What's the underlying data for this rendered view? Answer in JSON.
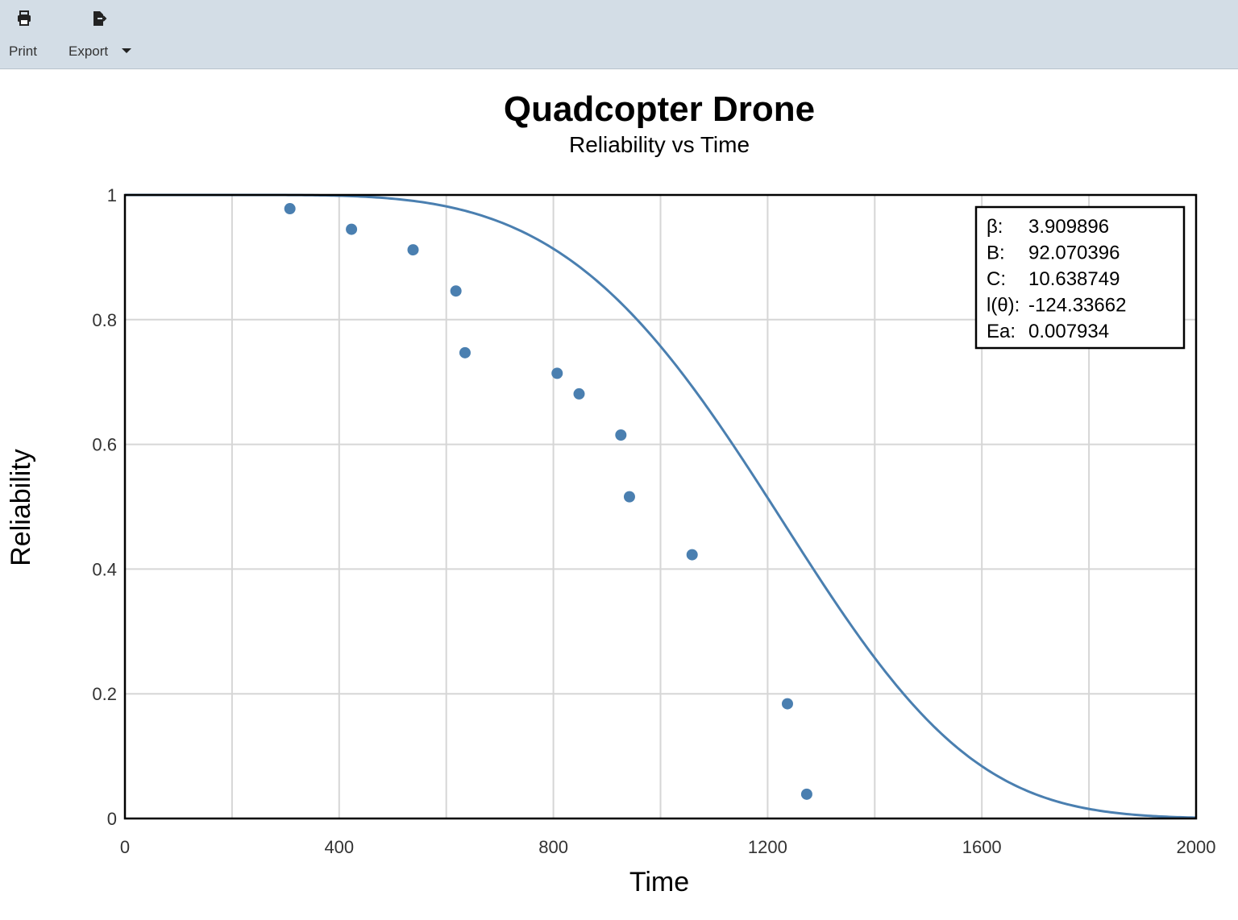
{
  "toolbar": {
    "print_label": "Print",
    "export_label": "Export"
  },
  "icons": {
    "print": "printer-icon",
    "export": "export-file-icon",
    "caret": "caret-down-icon"
  },
  "colors": {
    "series": "#4a7fb0",
    "toolbar_bg": "#d3dde6"
  },
  "chart_data": {
    "type": "scatter",
    "title": "Quadcopter Drone",
    "subtitle": "Reliability vs Time",
    "xlabel": "Time",
    "ylabel": "Reliability",
    "xlim": [
      0,
      2000
    ],
    "ylim": [
      0,
      1
    ],
    "xticks": [
      0,
      400,
      800,
      1200,
      1600,
      2000
    ],
    "yticks": [
      0,
      0.2,
      0.4,
      0.6,
      0.8,
      1
    ],
    "ytick_labels": [
      "0",
      "0.2",
      "0.4",
      "0.6",
      "0.8",
      "1"
    ],
    "grid": true,
    "points": [
      {
        "x": 308,
        "y": 0.978
      },
      {
        "x": 423,
        "y": 0.945
      },
      {
        "x": 538,
        "y": 0.912
      },
      {
        "x": 618,
        "y": 0.846
      },
      {
        "x": 635,
        "y": 0.747
      },
      {
        "x": 807,
        "y": 0.714
      },
      {
        "x": 848,
        "y": 0.681
      },
      {
        "x": 926,
        "y": 0.615
      },
      {
        "x": 942,
        "y": 0.516
      },
      {
        "x": 1059,
        "y": 0.423
      },
      {
        "x": 1237,
        "y": 0.184
      },
      {
        "x": 1273,
        "y": 0.039
      }
    ],
    "fitted_curve": {
      "model": "weibull",
      "beta": 3.909896,
      "eta": 1110,
      "gamma": 200
    },
    "legend_position": "top-right",
    "stats": [
      {
        "label": "β:",
        "value": "3.909896"
      },
      {
        "label": "B:",
        "value": "92.070396"
      },
      {
        "label": "C:",
        "value": "10.638749"
      },
      {
        "label": "l(θ):",
        "value": "-124.33662"
      },
      {
        "label": "Ea:",
        "value": "0.007934"
      }
    ]
  }
}
